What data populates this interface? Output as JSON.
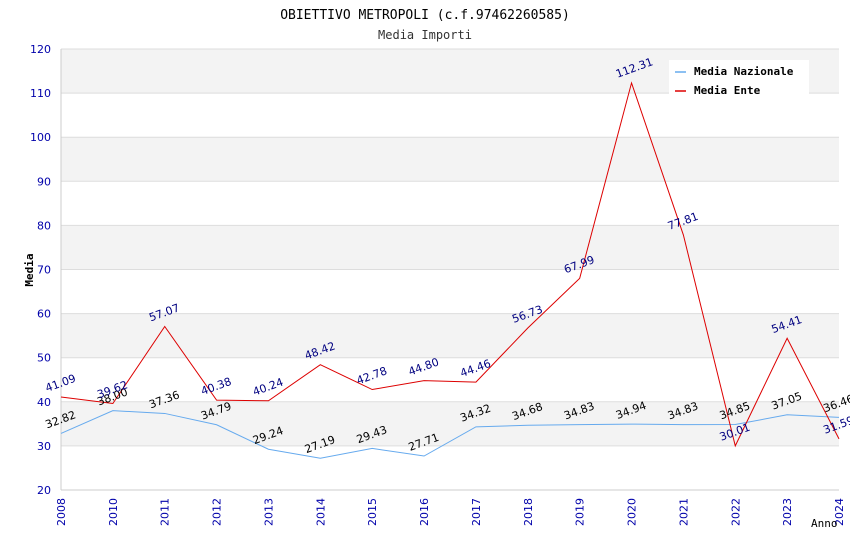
{
  "chart_data": {
    "type": "line",
    "title": "OBIETTIVO METROPOLI (c.f.97462260585)",
    "subtitle": "Media Importi",
    "xlabel": "Anno",
    "ylabel": "Media",
    "ylim": [
      20,
      120
    ],
    "yticks": [
      "20",
      "30",
      "40",
      "50",
      "60",
      "70",
      "80",
      "90",
      "100",
      "110",
      "120"
    ],
    "categories": [
      "2008",
      "2010",
      "2011",
      "2012",
      "2013",
      "2014",
      "2015",
      "2016",
      "2017",
      "2018",
      "2019",
      "2020",
      "2021",
      "2022",
      "2023",
      "2024"
    ],
    "grid": true,
    "legend_position": "top-right",
    "series": [
      {
        "name": "Media Nazionale",
        "color": "#66aaee",
        "label_color": "#000000",
        "values": [
          32.82,
          38.0,
          37.36,
          34.79,
          29.24,
          27.19,
          29.43,
          27.71,
          34.32,
          34.68,
          34.83,
          34.94,
          34.83,
          34.85,
          37.05,
          36.46
        ],
        "labels": [
          "32.82",
          "38.00",
          "37.36",
          "34.79",
          "29.24",
          "27.19",
          "29.43",
          "27.71",
          "34.32",
          "34.68",
          "34.83",
          "34.94",
          "34.83",
          "34.85",
          "37.05",
          "36.46"
        ]
      },
      {
        "name": "Media Ente",
        "color": "#dd0000",
        "label_color": "#000080",
        "values": [
          41.09,
          39.62,
          57.07,
          40.38,
          40.24,
          48.42,
          42.78,
          44.8,
          44.46,
          56.73,
          67.99,
          112.31,
          77.81,
          30.01,
          54.41,
          31.59
        ],
        "labels": [
          "41.09",
          "39.62",
          "57.07",
          "40.38",
          "40.24",
          "48.42",
          "42.78",
          "44.80",
          "44.46",
          "56.73",
          "67.99",
          "112.31",
          "77.81",
          "30.01",
          "54.41",
          "31.59"
        ]
      }
    ]
  }
}
